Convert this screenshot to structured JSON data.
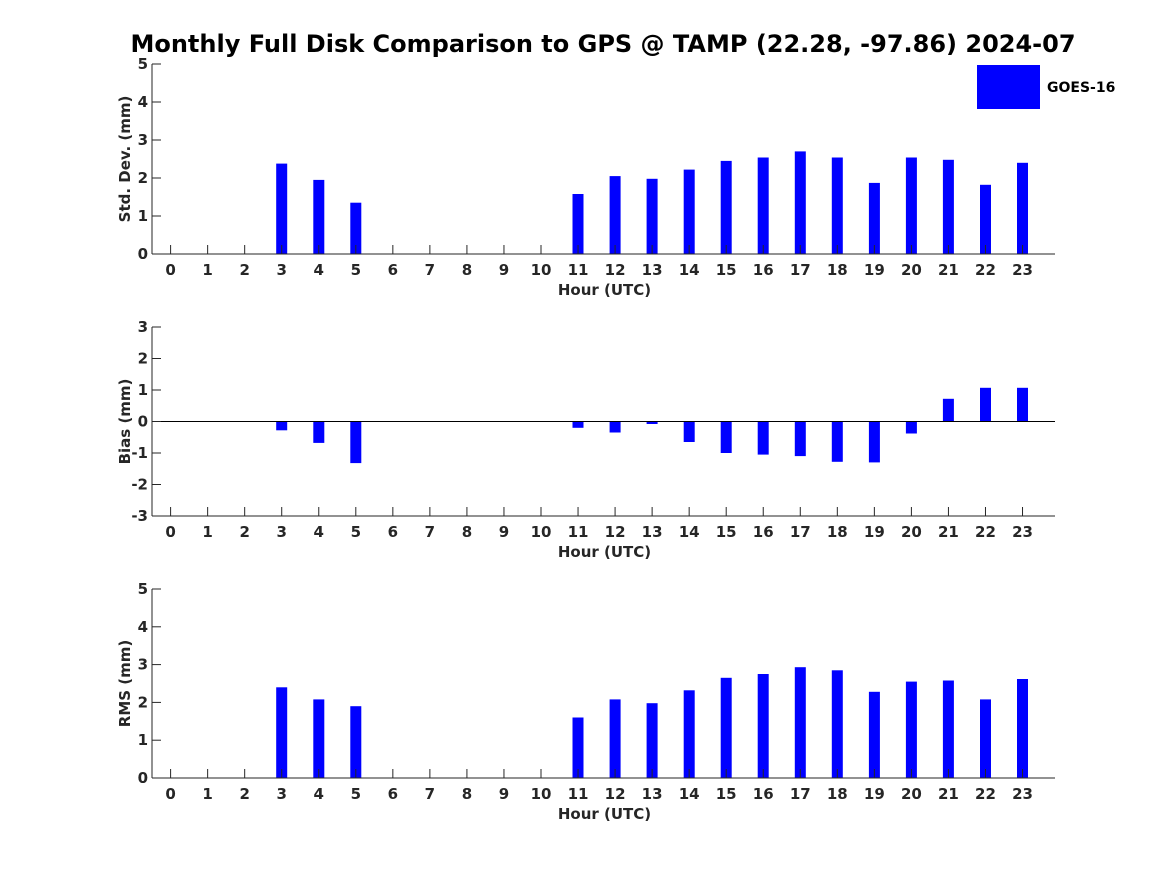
{
  "chart_data": {
    "type": "bar",
    "title": "Monthly Full Disk Comparison to GPS @ TAMP (22.28, -97.86) 2024-07",
    "legend": {
      "label": "GOES-16",
      "color": "#0000ff",
      "placement": "top-right"
    },
    "series_color": "#0000ff",
    "categories": [
      "0",
      "1",
      "2",
      "3",
      "4",
      "5",
      "6",
      "7",
      "8",
      "9",
      "10",
      "11",
      "12",
      "13",
      "14",
      "15",
      "16",
      "17",
      "18",
      "19",
      "20",
      "21",
      "22",
      "23"
    ],
    "panels": [
      {
        "name": "std-dev",
        "ylabel": "Std. Dev. (mm)",
        "xlabel": "Hour (UTC)",
        "ylim": [
          0,
          5
        ],
        "yticks": [
          "0",
          "1",
          "2",
          "3",
          "4",
          "5"
        ],
        "values": [
          null,
          null,
          null,
          2.38,
          1.95,
          1.35,
          null,
          null,
          null,
          null,
          null,
          1.58,
          2.05,
          1.98,
          2.22,
          2.45,
          2.54,
          2.7,
          2.54,
          1.87,
          2.54,
          2.48,
          1.82,
          2.4
        ]
      },
      {
        "name": "bias",
        "ylabel": "Bias (mm)",
        "xlabel": "Hour (UTC)",
        "ylim": [
          -3,
          3
        ],
        "yticks": [
          "-3",
          "-2",
          "-1",
          "0",
          "1",
          "2",
          "3"
        ],
        "zero_line": true,
        "values": [
          null,
          null,
          null,
          -0.28,
          -0.68,
          -1.32,
          null,
          null,
          null,
          null,
          null,
          -0.2,
          -0.35,
          -0.08,
          -0.65,
          -1.0,
          -1.05,
          -1.1,
          -1.28,
          -1.3,
          -0.38,
          0.72,
          1.07,
          1.07
        ]
      },
      {
        "name": "rms",
        "ylabel": "RMS (mm)",
        "xlabel": "Hour (UTC)",
        "ylim": [
          0,
          5
        ],
        "yticks": [
          "0",
          "1",
          "2",
          "3",
          "4",
          "5"
        ],
        "values": [
          null,
          null,
          null,
          2.4,
          2.08,
          1.9,
          null,
          null,
          null,
          null,
          null,
          1.6,
          2.08,
          1.98,
          2.32,
          2.65,
          2.75,
          2.93,
          2.85,
          2.28,
          2.55,
          2.58,
          2.08,
          2.62
        ]
      }
    ]
  }
}
